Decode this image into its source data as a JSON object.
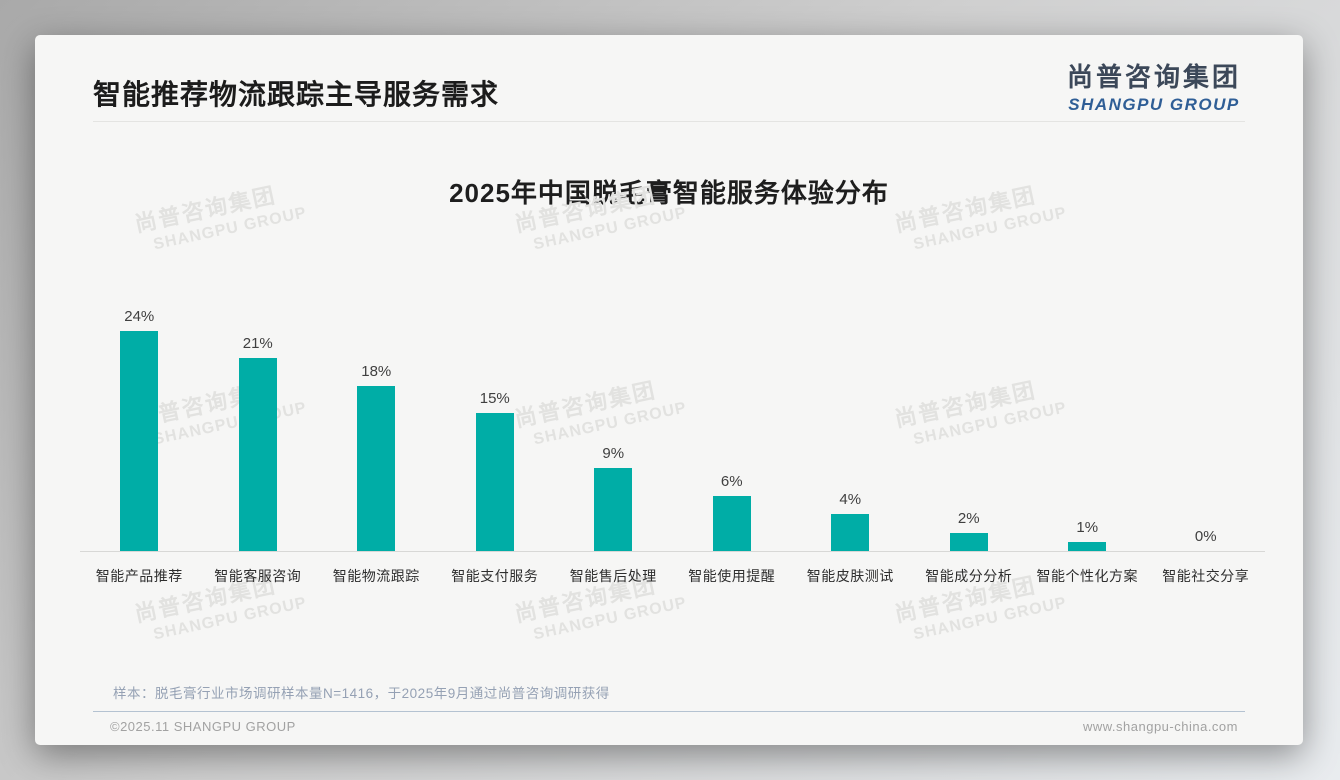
{
  "page": {
    "slide_title": "智能推荐物流跟踪主导服务需求",
    "logo": {
      "cn": "尚普咨询集团",
      "en": "SHANGPU GROUP"
    },
    "watermark": {
      "cn": "尚普咨询集团",
      "en": "SHANGPU GROUP"
    },
    "note": "样本：脱毛膏行业市场调研样本量N=1416，于2025年9月通过尚普咨询调研获得",
    "footer_left": "©2025.11 SHANGPU GROUP",
    "footer_right": "www.shangpu-china.com"
  },
  "colors": {
    "bar": "#00ada6",
    "logo_cn": "#3c4859",
    "logo_en": "#2f5e96",
    "card_bg": "#f6f6f5"
  },
  "chart_data": {
    "type": "bar",
    "title": "2025年中国脱毛膏智能服务体验分布",
    "categories": [
      "智能产品推荐",
      "智能客服咨询",
      "智能物流跟踪",
      "智能支付服务",
      "智能售后处理",
      "智能使用提醒",
      "智能皮肤测试",
      "智能成分分析",
      "智能个性化方案",
      "智能社交分享"
    ],
    "values": [
      24,
      21,
      18,
      15,
      9,
      6,
      4,
      2,
      1,
      0
    ],
    "unit": "%",
    "xlabel": "",
    "ylabel": "",
    "ylim": [
      0,
      24
    ],
    "grid": false,
    "legend": false,
    "data_labels": true,
    "bar_color": "#00ada6"
  }
}
